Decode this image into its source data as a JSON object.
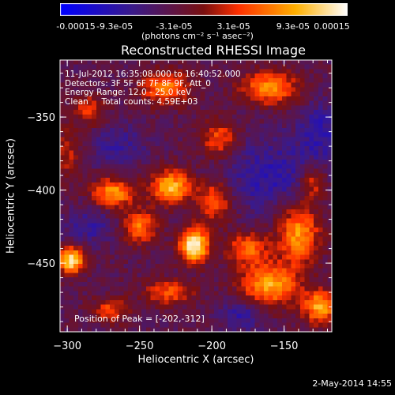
{
  "colorbar": {
    "tick_labels": [
      "-0.00015",
      "-9.3e-05",
      "-3.1e-05",
      "3.1e-05",
      "9.3e-05",
      "0.00015"
    ],
    "tick_values": [
      -0.00015,
      -9.3e-05,
      -3.1e-05,
      3.1e-05,
      9.3e-05,
      0.00015
    ],
    "range": [
      -0.00015,
      0.00015
    ],
    "units": "(photons cm⁻² s⁻¹ asec⁻²)",
    "colors": [
      "#0000ff",
      "#3a1a8a",
      "#7a1010",
      "#ff3000",
      "#ffb000",
      "#ffffff"
    ]
  },
  "chart_data": {
    "type": "heatmap",
    "title": "Reconstructed RHESSI Image",
    "xlabel": "Heliocentric X (arcsec)",
    "ylabel": "Heliocentric Y (arcsec)",
    "xlim": [
      -305,
      -117
    ],
    "ylim": [
      -497,
      -311
    ],
    "xticks": [
      -300,
      -250,
      -200,
      -150
    ],
    "xtick_labels": [
      "−300",
      "−250",
      "−200",
      "−150"
    ],
    "yticks": [
      -350,
      -400,
      -450
    ],
    "ytick_labels": [
      "−350",
      "−400",
      "−450"
    ],
    "annotations": [
      "11-Jul-2012 16:35:08.000 to 16:40:52.000",
      "Detectors: 3F 5F 6F 7F 8F 9F, Att_0",
      "Energy Range: 12.0 - 25.0 keV",
      "Clean     Total counts: 4.59E+03"
    ],
    "peak_label": "Position of Peak = [-202,-312]",
    "sources": [
      {
        "x": -212,
        "y": -438,
        "amp": 1.0,
        "sx": 7,
        "sy": 8
      },
      {
        "x": -297,
        "y": -448,
        "amp": 0.95,
        "sx": 6,
        "sy": 6
      },
      {
        "x": -228,
        "y": -398,
        "amp": 0.75,
        "sx": 10,
        "sy": 8
      },
      {
        "x": -268,
        "y": -402,
        "amp": 0.65,
        "sx": 10,
        "sy": 7
      },
      {
        "x": -250,
        "y": -425,
        "amp": 0.55,
        "sx": 8,
        "sy": 8
      },
      {
        "x": -198,
        "y": -408,
        "amp": 0.5,
        "sx": 8,
        "sy": 10
      },
      {
        "x": -160,
        "y": -465,
        "amp": 0.7,
        "sx": 14,
        "sy": 10
      },
      {
        "x": -140,
        "y": -430,
        "amp": 0.65,
        "sx": 10,
        "sy": 14
      },
      {
        "x": -175,
        "y": -440,
        "amp": 0.5,
        "sx": 10,
        "sy": 8
      },
      {
        "x": -232,
        "y": -330,
        "amp": 0.55,
        "sx": 12,
        "sy": 8
      },
      {
        "x": -160,
        "y": -330,
        "amp": 0.6,
        "sx": 14,
        "sy": 8
      },
      {
        "x": -195,
        "y": -365,
        "amp": 0.45,
        "sx": 9,
        "sy": 9
      },
      {
        "x": -285,
        "y": -345,
        "amp": 0.35,
        "sx": 8,
        "sy": 8
      },
      {
        "x": -125,
        "y": -480,
        "amp": 0.7,
        "sx": 8,
        "sy": 8
      },
      {
        "x": -270,
        "y": -482,
        "amp": 0.4,
        "sx": 9,
        "sy": 6
      },
      {
        "x": -230,
        "y": -470,
        "amp": 0.45,
        "sx": 12,
        "sy": 6
      },
      {
        "x": -130,
        "y": -395,
        "amp": 0.4,
        "sx": 6,
        "sy": 8
      },
      {
        "x": -300,
        "y": -375,
        "amp": 0.3,
        "sx": 6,
        "sy": 12
      }
    ],
    "negative_regions": [
      {
        "x": -160,
        "y": -390,
        "amp": 0.8,
        "sx": 22,
        "sy": 18
      },
      {
        "x": -125,
        "y": -360,
        "amp": 0.8,
        "sx": 10,
        "sy": 14
      },
      {
        "x": -285,
        "y": -425,
        "amp": 0.7,
        "sx": 12,
        "sy": 8
      },
      {
        "x": -265,
        "y": -370,
        "amp": 0.6,
        "sx": 14,
        "sy": 10
      },
      {
        "x": -180,
        "y": -485,
        "amp": 0.8,
        "sx": 10,
        "sy": 8
      }
    ]
  },
  "date_stamp": "2-May-2014 14:55"
}
